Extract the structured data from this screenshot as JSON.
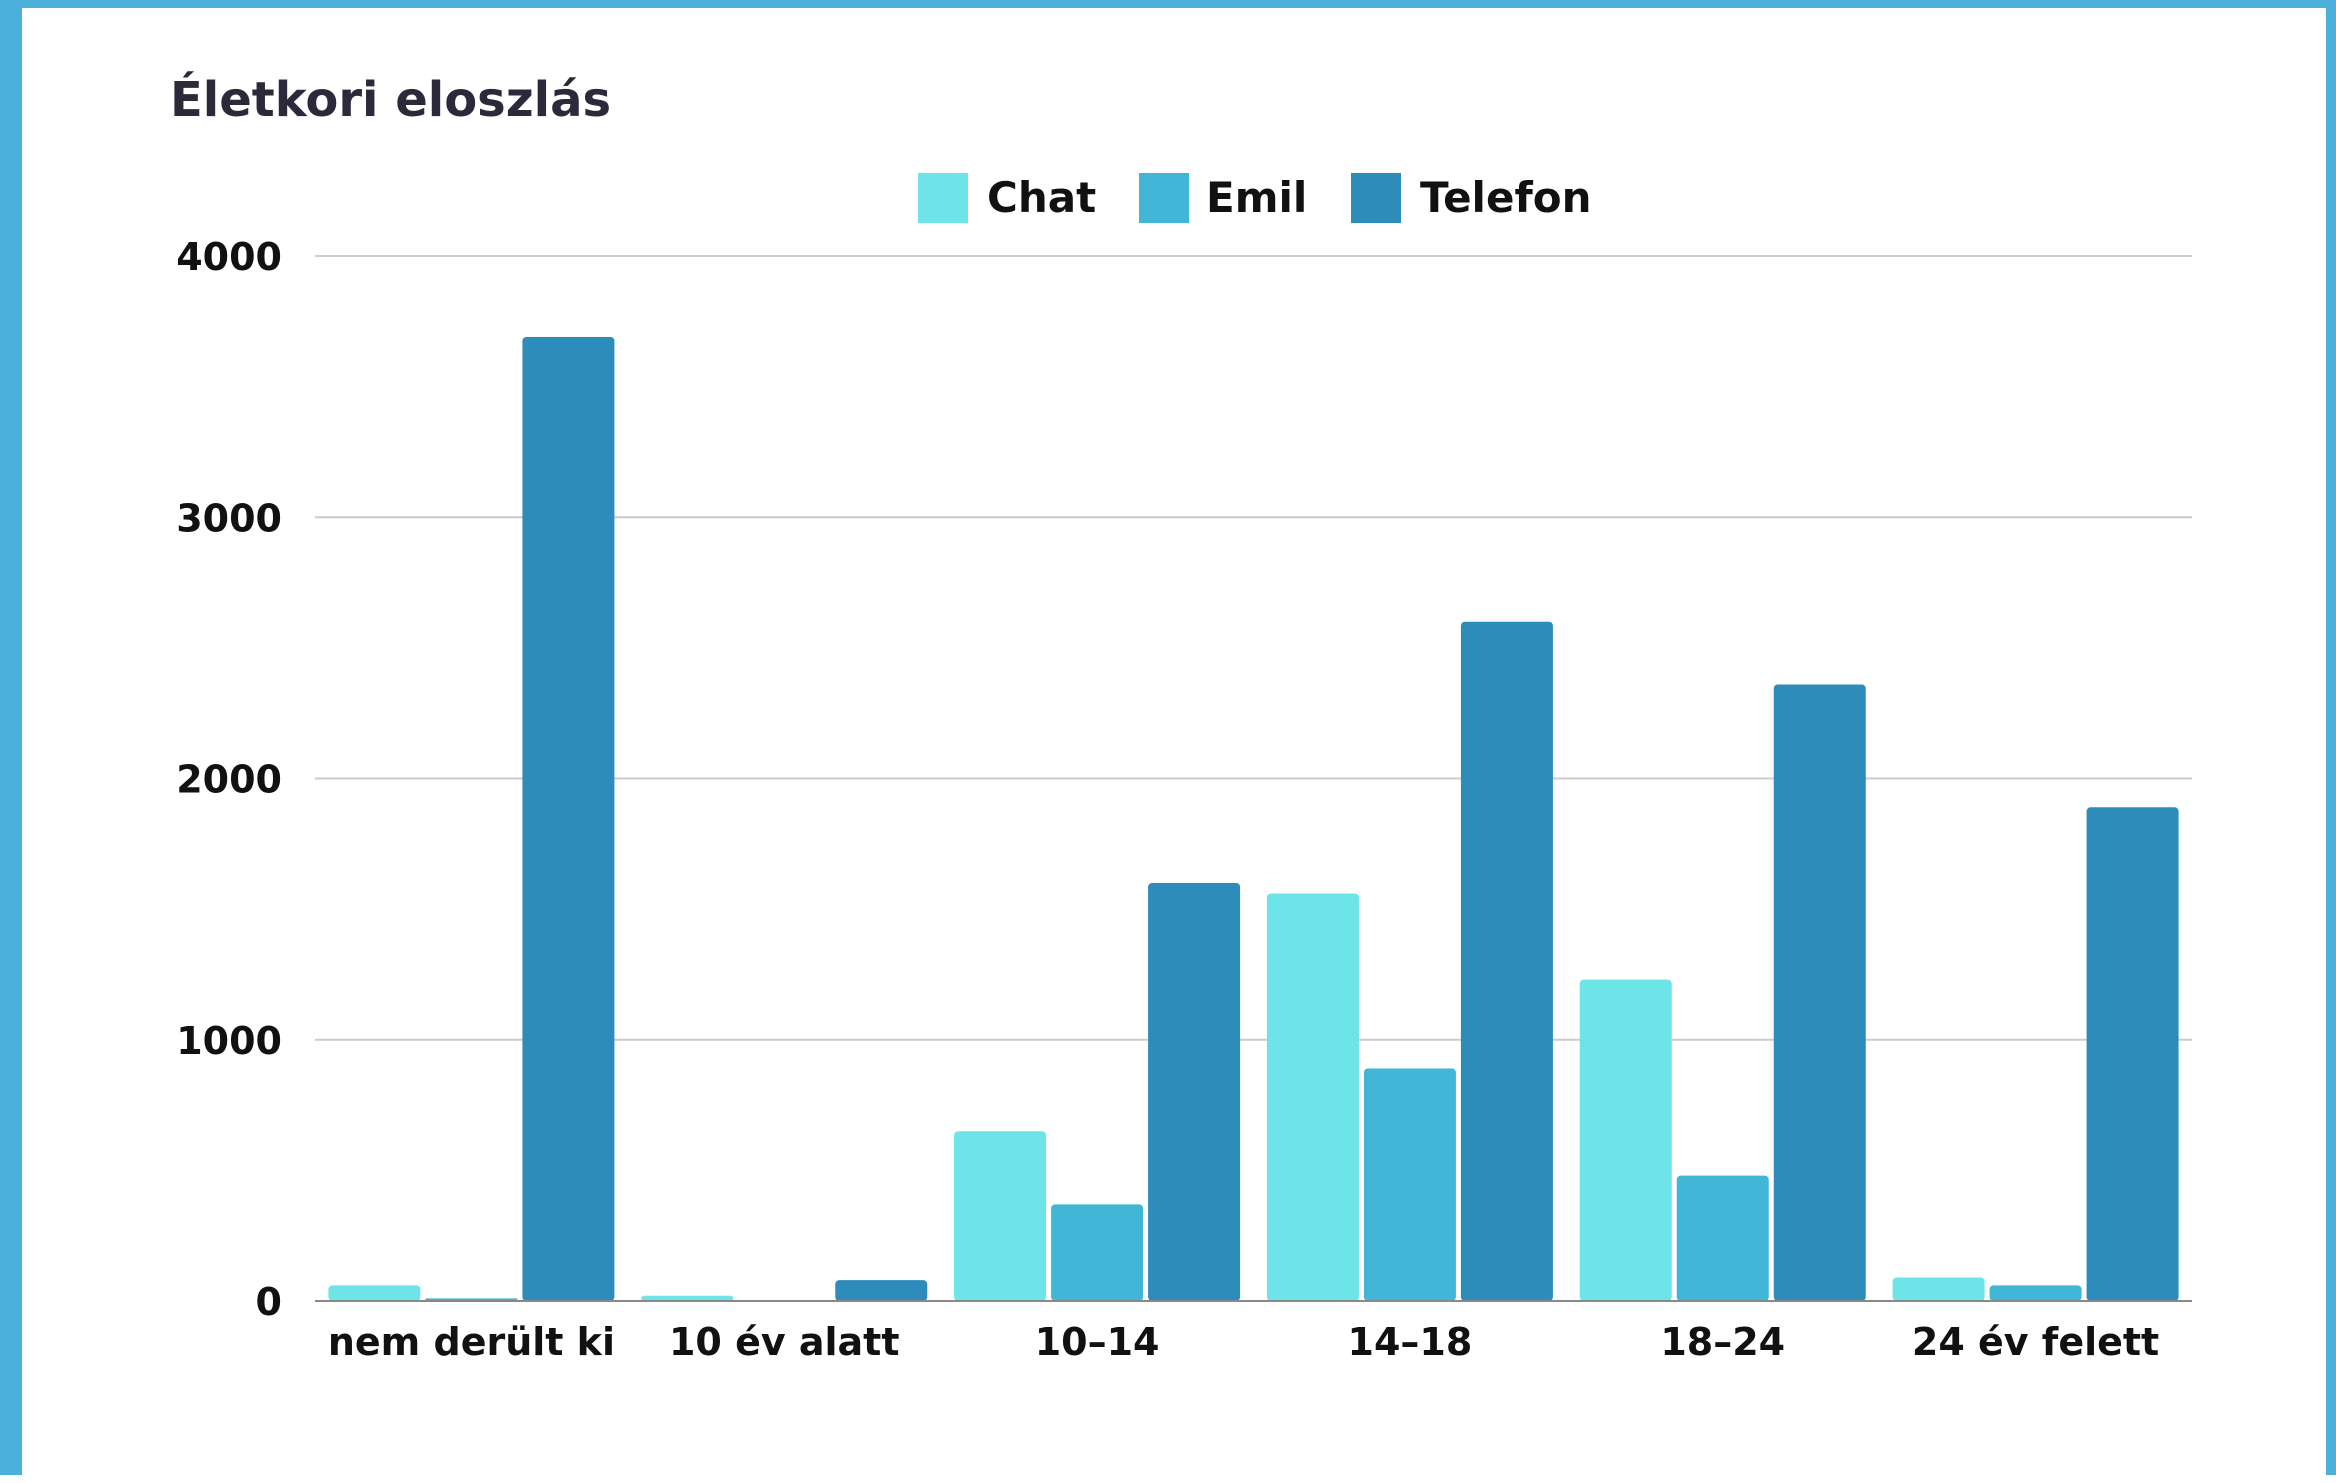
{
  "chart_data": {
    "type": "bar",
    "title": "Életkori eloszlás",
    "xlabel": "",
    "ylabel": "",
    "categories": [
      "nem derült ki",
      "10 év alatt",
      "10–14",
      "14–18",
      "18–24",
      "24 év felett"
    ],
    "series": [
      {
        "name": "Chat",
        "color": "#6de4e8",
        "values": [
          60,
          20,
          650,
          1560,
          1230,
          90
        ]
      },
      {
        "name": "Emil",
        "color": "#41b6d6",
        "values": [
          10,
          0,
          370,
          890,
          480,
          60
        ]
      },
      {
        "name": "Telefon",
        "color": "#2d8cba",
        "values": [
          3690,
          80,
          1600,
          2600,
          2360,
          1890
        ]
      }
    ],
    "ylim": [
      0,
      4000
    ],
    "yticks": [
      "0",
      "1000",
      "2000",
      "3000",
      "4000"
    ],
    "grid": true,
    "legend": "top-center"
  }
}
